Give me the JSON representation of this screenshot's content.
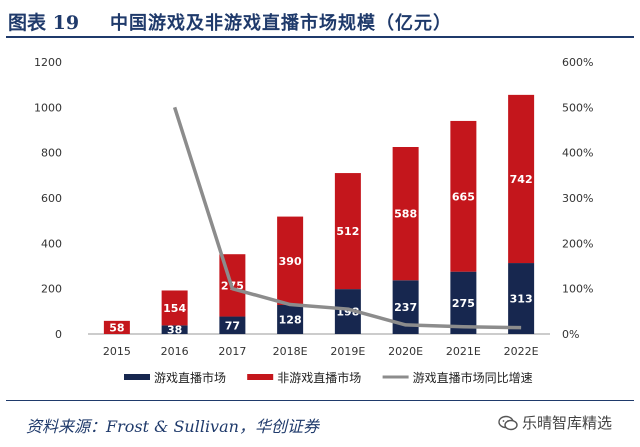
{
  "header": {
    "figure_label": "图表 19",
    "title": "中国游戏及非游戏直播市场规模（亿元）"
  },
  "chart_data": {
    "type": "bar",
    "stacked": true,
    "categories": [
      "2015",
      "2016",
      "2017",
      "2018E",
      "2019E",
      "2020E",
      "2021E",
      "2022E"
    ],
    "series": [
      {
        "name": "游戏直播市场",
        "type": "bar",
        "axis": "left",
        "color": "#17274f",
        "values": [
          null,
          38,
          77,
          128,
          198,
          237,
          275,
          313
        ]
      },
      {
        "name": "非游戏直播市场",
        "type": "bar",
        "axis": "left",
        "color": "#c4161c",
        "values": [
          58,
          154,
          275,
          390,
          512,
          588,
          665,
          742
        ]
      },
      {
        "name": "游戏直播市场同比增速",
        "type": "line",
        "axis": "right",
        "color": "#8c8c8c",
        "values": [
          null,
          500,
          100,
          65,
          55,
          20,
          16,
          14
        ]
      }
    ],
    "ylim": [
      0,
      1200
    ],
    "y_ticks": [
      "0",
      "200",
      "400",
      "600",
      "800",
      "1000",
      "1200"
    ],
    "y2lim": [
      0,
      600
    ],
    "y2_ticks": [
      "0%",
      "100%",
      "200%",
      "300%",
      "400%",
      "500%",
      "600%"
    ],
    "legend_position": "bottom",
    "grid": false
  },
  "footer": {
    "source": "资料来源：Frost & Sullivan，华创证券",
    "watermark": "乐晴智库精选"
  }
}
